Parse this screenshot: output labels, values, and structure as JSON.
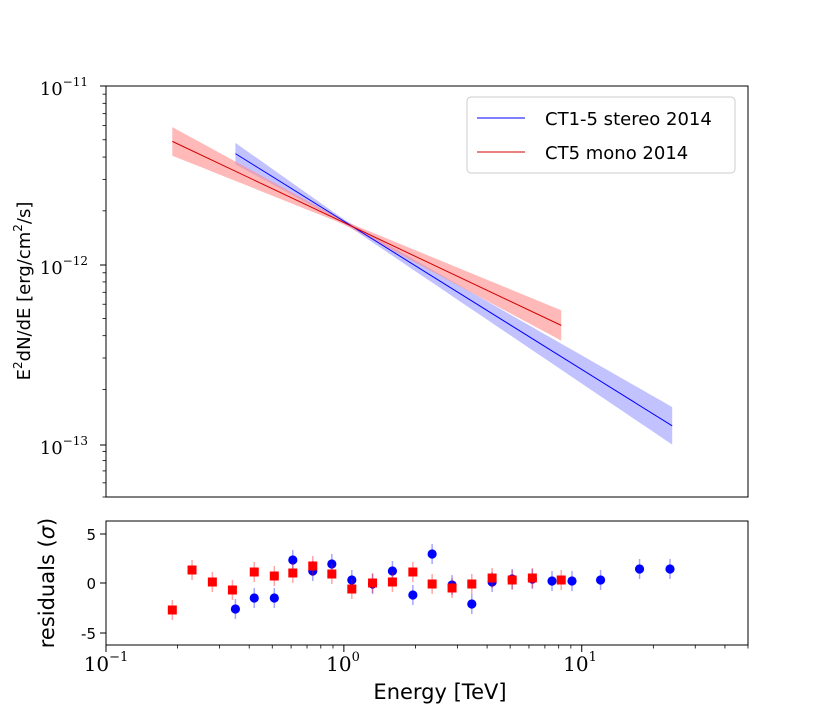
{
  "chart_data": [
    {
      "type": "line",
      "panel": "spectrum",
      "xscale": "log",
      "yscale": "log",
      "xlim": [
        0.1,
        50
      ],
      "ylim": [
        5e-14,
        1e-11
      ],
      "ylabel": "E²dN/dE [erg/cm²/s]",
      "ylabel_parts": {
        "a": "E",
        "b": "2",
        "c": "dN/dE [erg/cm",
        "d": "2",
        "e": "/s]"
      },
      "yticks": [
        {
          "base": "10",
          "exp": "−11"
        },
        {
          "base": "10",
          "exp": "−12"
        },
        {
          "base": "10",
          "exp": "−13"
        }
      ],
      "legend_position": "top-right",
      "series": [
        {
          "name": "CT1-5 stereo 2014",
          "color": "#0000ff",
          "band_color": "#9999ff",
          "e_min": 0.35,
          "e_max": 24,
          "flux_at_1tev": 1.75e-12,
          "slope": -0.83,
          "band_at_emin": 0.06,
          "band_at_pivot": 0.01,
          "band_at_emax": 0.105
        },
        {
          "name": "CT5 mono 2014",
          "color": "#d40000",
          "band_color": "#ff8a8a",
          "e_min": 0.19,
          "e_max": 8.2,
          "flux_at_1tev": 1.72e-12,
          "slope": -0.63,
          "band_at_emin": 0.08,
          "band_at_pivot": 0.01,
          "band_at_emax": 0.085
        }
      ]
    },
    {
      "type": "scatter",
      "panel": "residuals",
      "xscale": "log",
      "xlim": [
        0.1,
        50
      ],
      "ylim": [
        -6.2,
        6.2
      ],
      "yticks": [
        {
          "value": 5,
          "label": "5"
        },
        {
          "value": 0,
          "label": "0"
        },
        {
          "value": -5,
          "label": "-5"
        }
      ],
      "ylabel": "residuals (σ)",
      "ylabel_parts": {
        "text": "residuals (",
        "sigma": "σ",
        "close": ")"
      },
      "xlabel": "Energy [TeV]",
      "xticks": [
        {
          "value": 0.1,
          "base": "10",
          "exp": "−1"
        },
        {
          "value": 1,
          "base": "10",
          "exp": "0"
        },
        {
          "value": 10,
          "base": "10",
          "exp": "1"
        }
      ],
      "series": [
        {
          "name": "CT1-5 stereo 2014",
          "color": "#0000ff",
          "marker": "circle",
          "x": [
            0.35,
            0.42,
            0.51,
            0.61,
            0.74,
            0.89,
            1.08,
            1.32,
            1.6,
            1.95,
            2.35,
            2.85,
            3.45,
            4.2,
            5.1,
            6.2,
            7.5,
            9.1,
            12,
            17.5,
            23.5
          ],
          "y": [
            -2.6,
            -1.5,
            -1.5,
            2.3,
            1.2,
            1.9,
            0.3,
            -0.1,
            1.2,
            -1.2,
            2.9,
            -0.2,
            -2.1,
            0.1,
            0.4,
            0.4,
            0.2,
            0.2,
            0.3,
            1.4,
            1.4
          ],
          "err": 1
        },
        {
          "name": "CT5 mono 2014",
          "color": "#ff0000",
          "marker": "square",
          "x": [
            0.19,
            0.23,
            0.28,
            0.34,
            0.42,
            0.51,
            0.61,
            0.74,
            0.89,
            1.08,
            1.32,
            1.6,
            1.95,
            2.35,
            2.85,
            3.45,
            4.2,
            5.1,
            6.2,
            8.2
          ],
          "y": [
            -2.7,
            1.3,
            0.1,
            -0.7,
            1.1,
            0.7,
            1.0,
            1.7,
            0.9,
            -0.6,
            0.0,
            0.1,
            1.1,
            -0.1,
            -0.5,
            -0.1,
            0.5,
            0.3,
            0.5,
            0.3
          ],
          "err": 1
        }
      ]
    }
  ]
}
